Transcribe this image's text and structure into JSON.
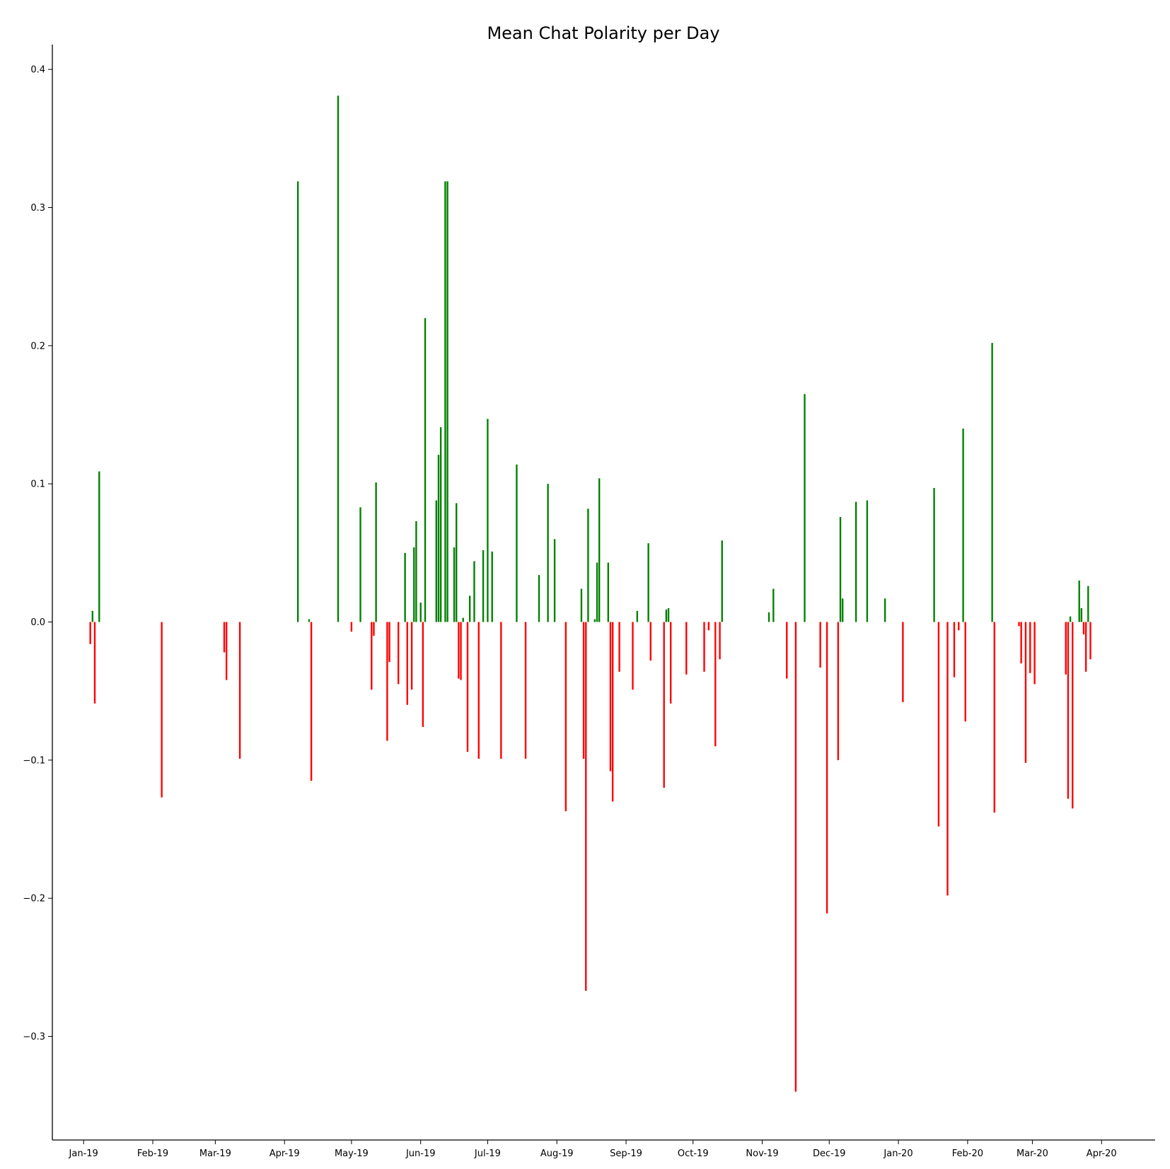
{
  "chart_data": {
    "type": "bar",
    "title": "Mean Chat Polarity per Day",
    "xlabel": "",
    "ylabel": "",
    "x_range": [
      "2018-12-18",
      "2020-04-25"
    ],
    "ylim": [
      -0.375,
      0.418
    ],
    "yticks": [
      {
        "value": -0.3,
        "label": "−0.3"
      },
      {
        "value": -0.2,
        "label": "−0.2"
      },
      {
        "value": -0.1,
        "label": "−0.1"
      },
      {
        "value": 0.0,
        "label": "0.0"
      },
      {
        "value": 0.1,
        "label": "0.1"
      },
      {
        "value": 0.2,
        "label": "0.2"
      },
      {
        "value": 0.3,
        "label": "0.3"
      },
      {
        "value": 0.4,
        "label": "0.4"
      }
    ],
    "xticks": [
      {
        "date": "2019-01-01",
        "label": "Jan-19"
      },
      {
        "date": "2019-02-01",
        "label": "Feb-19"
      },
      {
        "date": "2019-03-01",
        "label": "Mar-19"
      },
      {
        "date": "2019-04-01",
        "label": "Apr-19"
      },
      {
        "date": "2019-05-01",
        "label": "May-19"
      },
      {
        "date": "2019-06-01",
        "label": "Jun-19"
      },
      {
        "date": "2019-07-01",
        "label": "Jul-19"
      },
      {
        "date": "2019-08-01",
        "label": "Aug-19"
      },
      {
        "date": "2019-09-01",
        "label": "Sep-19"
      },
      {
        "date": "2019-10-01",
        "label": "Oct-19"
      },
      {
        "date": "2019-11-01",
        "label": "Nov-19"
      },
      {
        "date": "2019-12-01",
        "label": "Dec-19"
      },
      {
        "date": "2020-01-01",
        "label": "Jan-20"
      },
      {
        "date": "2020-02-01",
        "label": "Feb-20"
      },
      {
        "date": "2020-03-01",
        "label": "Mar-20"
      },
      {
        "date": "2020-04-01",
        "label": "Apr-20"
      }
    ],
    "colors": {
      "positive": "#008000",
      "negative": "#ff0000"
    },
    "grid": false,
    "legend": "none",
    "points": [
      {
        "x": "2019-01-04",
        "y": -0.016
      },
      {
        "x": "2019-01-05",
        "y": 0.008
      },
      {
        "x": "2019-01-06",
        "y": -0.059
      },
      {
        "x": "2019-01-08",
        "y": 0.109
      },
      {
        "x": "2019-02-05",
        "y": -0.127
      },
      {
        "x": "2019-03-05",
        "y": -0.022
      },
      {
        "x": "2019-03-06",
        "y": -0.042
      },
      {
        "x": "2019-03-12",
        "y": -0.099
      },
      {
        "x": "2019-04-07",
        "y": 0.319
      },
      {
        "x": "2019-04-12",
        "y": 0.002
      },
      {
        "x": "2019-04-13",
        "y": -0.115
      },
      {
        "x": "2019-04-25",
        "y": 0.381
      },
      {
        "x": "2019-05-01",
        "y": -0.007
      },
      {
        "x": "2019-05-05",
        "y": 0.083
      },
      {
        "x": "2019-05-10",
        "y": -0.049
      },
      {
        "x": "2019-05-11",
        "y": -0.01
      },
      {
        "x": "2019-05-12",
        "y": 0.101
      },
      {
        "x": "2019-05-17",
        "y": -0.086
      },
      {
        "x": "2019-05-18",
        "y": -0.029
      },
      {
        "x": "2019-05-22",
        "y": -0.045
      },
      {
        "x": "2019-05-25",
        "y": 0.05
      },
      {
        "x": "2019-05-26",
        "y": -0.06
      },
      {
        "x": "2019-05-28",
        "y": -0.049
      },
      {
        "x": "2019-05-29",
        "y": 0.054
      },
      {
        "x": "2019-05-30",
        "y": 0.073
      },
      {
        "x": "2019-06-01",
        "y": 0.014
      },
      {
        "x": "2019-06-02",
        "y": -0.076
      },
      {
        "x": "2019-06-03",
        "y": 0.22
      },
      {
        "x": "2019-06-08",
        "y": 0.088
      },
      {
        "x": "2019-06-09",
        "y": 0.121
      },
      {
        "x": "2019-06-10",
        "y": 0.141
      },
      {
        "x": "2019-06-12",
        "y": 0.319
      },
      {
        "x": "2019-06-13",
        "y": 0.319
      },
      {
        "x": "2019-06-16",
        "y": 0.054
      },
      {
        "x": "2019-06-17",
        "y": 0.086
      },
      {
        "x": "2019-06-18",
        "y": -0.041
      },
      {
        "x": "2019-06-19",
        "y": -0.042
      },
      {
        "x": "2019-06-20",
        "y": 0.003
      },
      {
        "x": "2019-06-22",
        "y": -0.094
      },
      {
        "x": "2019-06-23",
        "y": 0.019
      },
      {
        "x": "2019-06-25",
        "y": 0.044
      },
      {
        "x": "2019-06-27",
        "y": -0.099
      },
      {
        "x": "2019-06-29",
        "y": 0.052
      },
      {
        "x": "2019-07-01",
        "y": 0.147
      },
      {
        "x": "2019-07-03",
        "y": 0.051
      },
      {
        "x": "2019-07-07",
        "y": -0.099
      },
      {
        "x": "2019-07-14",
        "y": 0.114
      },
      {
        "x": "2019-07-18",
        "y": -0.099
      },
      {
        "x": "2019-07-24",
        "y": 0.034
      },
      {
        "x": "2019-07-28",
        "y": 0.1
      },
      {
        "x": "2019-07-31",
        "y": 0.06
      },
      {
        "x": "2019-08-05",
        "y": -0.137
      },
      {
        "x": "2019-08-12",
        "y": 0.024
      },
      {
        "x": "2019-08-13",
        "y": -0.099
      },
      {
        "x": "2019-08-14",
        "y": -0.267
      },
      {
        "x": "2019-08-15",
        "y": 0.082
      },
      {
        "x": "2019-08-18",
        "y": 0.002
      },
      {
        "x": "2019-08-19",
        "y": 0.043
      },
      {
        "x": "2019-08-20",
        "y": 0.104
      },
      {
        "x": "2019-08-24",
        "y": 0.043
      },
      {
        "x": "2019-08-25",
        "y": -0.108
      },
      {
        "x": "2019-08-26",
        "y": -0.13
      },
      {
        "x": "2019-08-29",
        "y": -0.036
      },
      {
        "x": "2019-09-04",
        "y": -0.049
      },
      {
        "x": "2019-09-06",
        "y": 0.008
      },
      {
        "x": "2019-09-11",
        "y": 0.057
      },
      {
        "x": "2019-09-12",
        "y": -0.028
      },
      {
        "x": "2019-09-18",
        "y": -0.12
      },
      {
        "x": "2019-09-19",
        "y": 0.009
      },
      {
        "x": "2019-09-20",
        "y": 0.01
      },
      {
        "x": "2019-09-21",
        "y": -0.059
      },
      {
        "x": "2019-09-28",
        "y": -0.038
      },
      {
        "x": "2019-10-06",
        "y": -0.036
      },
      {
        "x": "2019-10-08",
        "y": -0.006
      },
      {
        "x": "2019-10-11",
        "y": -0.09
      },
      {
        "x": "2019-10-13",
        "y": -0.027
      },
      {
        "x": "2019-10-14",
        "y": 0.059
      },
      {
        "x": "2019-11-04",
        "y": 0.007
      },
      {
        "x": "2019-11-06",
        "y": 0.024
      },
      {
        "x": "2019-11-12",
        "y": -0.041
      },
      {
        "x": "2019-11-16",
        "y": -0.34
      },
      {
        "x": "2019-11-20",
        "y": 0.165
      },
      {
        "x": "2019-11-27",
        "y": -0.033
      },
      {
        "x": "2019-11-30",
        "y": -0.211
      },
      {
        "x": "2019-12-05",
        "y": -0.1
      },
      {
        "x": "2019-12-06",
        "y": 0.076
      },
      {
        "x": "2019-12-07",
        "y": 0.017
      },
      {
        "x": "2019-12-13",
        "y": 0.087
      },
      {
        "x": "2019-12-18",
        "y": 0.088
      },
      {
        "x": "2019-12-26",
        "y": 0.017
      },
      {
        "x": "2020-01-03",
        "y": -0.058
      },
      {
        "x": "2020-01-17",
        "y": 0.097
      },
      {
        "x": "2020-01-19",
        "y": -0.148
      },
      {
        "x": "2020-01-23",
        "y": -0.198
      },
      {
        "x": "2020-01-26",
        "y": -0.04
      },
      {
        "x": "2020-01-28",
        "y": -0.006
      },
      {
        "x": "2020-01-30",
        "y": 0.14
      },
      {
        "x": "2020-01-31",
        "y": -0.072
      },
      {
        "x": "2020-02-12",
        "y": 0.202
      },
      {
        "x": "2020-02-13",
        "y": -0.138
      },
      {
        "x": "2020-02-24",
        "y": -0.003
      },
      {
        "x": "2020-02-25",
        "y": -0.03
      },
      {
        "x": "2020-02-27",
        "y": -0.102
      },
      {
        "x": "2020-02-29",
        "y": -0.037
      },
      {
        "x": "2020-03-02",
        "y": -0.045
      },
      {
        "x": "2020-03-16",
        "y": -0.038
      },
      {
        "x": "2020-03-17",
        "y": -0.128
      },
      {
        "x": "2020-03-18",
        "y": 0.004
      },
      {
        "x": "2020-03-19",
        "y": -0.135
      },
      {
        "x": "2020-03-22",
        "y": 0.03
      },
      {
        "x": "2020-03-23",
        "y": 0.01
      },
      {
        "x": "2020-03-24",
        "y": -0.009
      },
      {
        "x": "2020-03-25",
        "y": -0.036
      },
      {
        "x": "2020-03-26",
        "y": 0.026
      },
      {
        "x": "2020-03-27",
        "y": -0.027
      }
    ]
  }
}
